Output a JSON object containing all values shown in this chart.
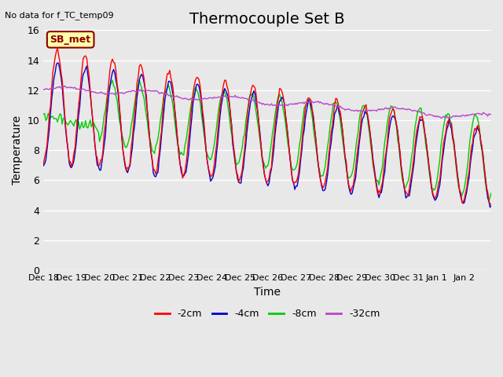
{
  "title": "Thermocouple Set B",
  "xlabel": "Time",
  "ylabel": "Temperature",
  "no_data_text": "No data for f_TC_temp09",
  "sb_met_label": "SB_met",
  "ylim": [
    0,
    16
  ],
  "yticks": [
    0,
    2,
    4,
    6,
    8,
    10,
    12,
    14,
    16
  ],
  "x_labels": [
    "Dec 18",
    "Dec 19",
    "Dec 20",
    "Dec 21",
    "Dec 22",
    "Dec 23",
    "Dec 24",
    "Dec 25",
    "Dec 26",
    "Dec 27",
    "Dec 28",
    "Dec 29",
    "Dec 30",
    "Dec 31",
    "Jan 1",
    "Jan 2"
  ],
  "legend_entries": [
    "-2cm",
    "-4cm",
    "-8cm",
    "-32cm"
  ],
  "legend_colors": [
    "#ff0000",
    "#0000cc",
    "#00cc00",
    "#bb44cc"
  ],
  "background_color": "#e8e8e8",
  "grid_color": "#ffffff",
  "title_fontsize": 14,
  "axis_fontsize": 10,
  "tick_fontsize": 9
}
